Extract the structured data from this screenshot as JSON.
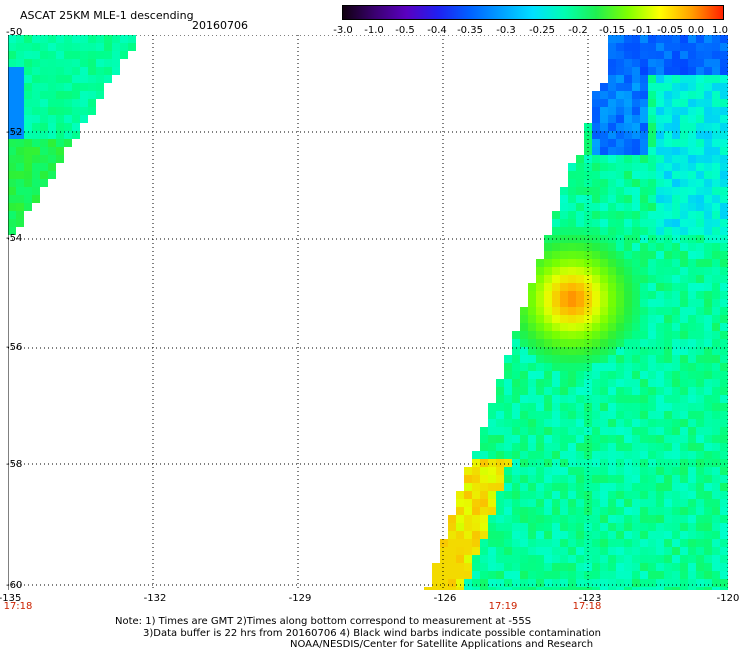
{
  "title": "ASCAT 25KM MLE-1 descending",
  "date": "20160706",
  "colorbar": {
    "labels": [
      "-3.0",
      "-1.0",
      "-0.5",
      "-0.4",
      "-0.35",
      "-0.3",
      "-0.25",
      "-0.2",
      "-0.15",
      "-0.1",
      "-0.05",
      "0.0",
      "1.0"
    ],
    "colors": [
      "#100010",
      "#3a0070",
      "#5a00c0",
      "#2020f0",
      "#0060ff",
      "#00a0ff",
      "#00e0ff",
      "#00ffb0",
      "#20f050",
      "#80ff00",
      "#ffff00",
      "#ffa000",
      "#ff2000"
    ]
  },
  "map": {
    "lat_labels": [
      "-50",
      "-52",
      "-54",
      "-56",
      "-58",
      "-60"
    ],
    "lon_labels": [
      "-135",
      "-132",
      "-129",
      "-126",
      "-123",
      "-120"
    ],
    "times": [
      "17:18",
      "17:19",
      "17:18"
    ]
  },
  "notes": {
    "line1": "Note: 1) Times are GMT 2)Times along bottom correspond to measurement at -55S",
    "line2": "3)Data buffer is 22 hrs from 20160706 4) Black wind barbs indicate possible contamination",
    "line3": "NOAA/NESDIS/Center for Satellite Applications and Research"
  }
}
